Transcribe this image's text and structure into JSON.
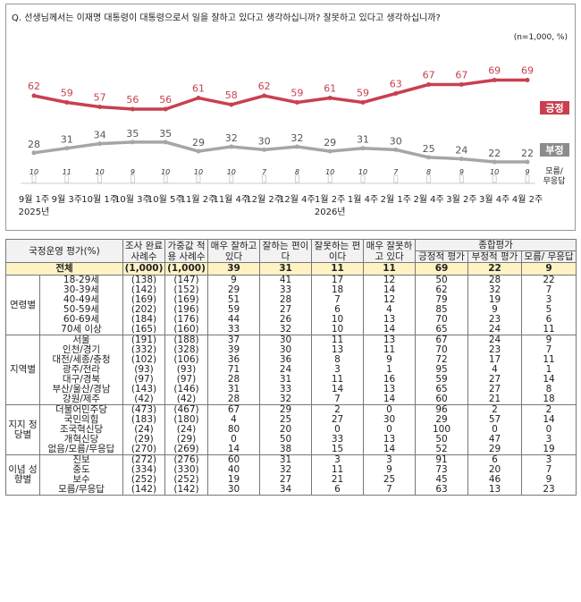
{
  "question": "Q. 선생님께서는 이재명 대통령이 대통령으로서 일을 잘하고 있다고 생각하십니까? 잘못하고 있다고 생각하십니까?",
  "note": "(n=1,000, %)",
  "colors": {
    "positive": "#c8404f",
    "negative": "#a6a6a6",
    "unknown": "#c8c8c8"
  },
  "chart_data": {
    "type": "line",
    "categories": [
      "9월 1주",
      "9월 3주",
      "10월 1주",
      "10월 3주",
      "10월 5주",
      "11월 2주",
      "11월 4주",
      "12월 2주",
      "12월 4주",
      "1월 2주",
      "1월 4주",
      "2월 1주",
      "2월 4주",
      "3월 2주",
      "3월 4주",
      "4월 2주"
    ],
    "year_labels": [
      {
        "index": 0,
        "text": "2025년"
      },
      {
        "index": 9,
        "text": "2026년"
      }
    ],
    "series": [
      {
        "name": "긍정",
        "values": [
          62,
          59,
          57,
          56,
          56,
          61,
          58,
          62,
          59,
          61,
          59,
          63,
          67,
          67,
          69,
          69
        ]
      },
      {
        "name": "부정",
        "values": [
          28,
          31,
          34,
          35,
          35,
          29,
          32,
          30,
          32,
          29,
          31,
          30,
          25,
          24,
          22,
          22
        ]
      },
      {
        "name": "모름/무응답",
        "values": [
          10,
          11,
          10,
          9,
          10,
          10,
          10,
          7,
          8,
          10,
          10,
          7,
          8,
          9,
          10,
          9
        ]
      }
    ]
  },
  "table": {
    "headers": {
      "evaluation": "국정운영 평가(%)",
      "sample": "조사 완료 사례수",
      "weighted": "가중값 적용 사례수",
      "very_good": "매우 잘하고 있다",
      "good": "잘하는 편이다",
      "bad": "잘못하는 편이다",
      "very_bad": "매우 잘못하고 있다",
      "overall": "종합평가",
      "positive": "긍정적 평가",
      "negative": "부정적 평가",
      "unknown": "모름/ 무응답"
    },
    "total": {
      "label": "전체",
      "cells": [
        "(1,000)",
        "(1,000)",
        "39",
        "31",
        "11",
        "11",
        "69",
        "22",
        "9"
      ]
    },
    "groups": [
      {
        "name": "연령별",
        "rows": [
          {
            "label": "18-29세",
            "cells": [
              "(138)",
              "(147)",
              "9",
              "41",
              "17",
              "12",
              "50",
              "28",
              "22"
            ]
          },
          {
            "label": "30-39세",
            "cells": [
              "(142)",
              "(152)",
              "29",
              "33",
              "18",
              "14",
              "62",
              "32",
              "7"
            ]
          },
          {
            "label": "40-49세",
            "cells": [
              "(169)",
              "(169)",
              "51",
              "28",
              "7",
              "12",
              "79",
              "19",
              "3"
            ]
          },
          {
            "label": "50-59세",
            "cells": [
              "(202)",
              "(196)",
              "59",
              "27",
              "6",
              "4",
              "85",
              "9",
              "5"
            ]
          },
          {
            "label": "60-69세",
            "cells": [
              "(184)",
              "(176)",
              "44",
              "26",
              "10",
              "13",
              "70",
              "23",
              "6"
            ]
          },
          {
            "label": "70세 이상",
            "cells": [
              "(165)",
              "(160)",
              "33",
              "32",
              "10",
              "14",
              "65",
              "24",
              "11"
            ]
          }
        ]
      },
      {
        "name": "지역별",
        "rows": [
          {
            "label": "서울",
            "cells": [
              "(191)",
              "(188)",
              "37",
              "30",
              "11",
              "13",
              "67",
              "24",
              "9"
            ]
          },
          {
            "label": "인천/경기",
            "cells": [
              "(332)",
              "(328)",
              "39",
              "30",
              "13",
              "11",
              "70",
              "23",
              "7"
            ]
          },
          {
            "label": "대전/세종/충청",
            "cells": [
              "(102)",
              "(106)",
              "36",
              "36",
              "8",
              "9",
              "72",
              "17",
              "11"
            ]
          },
          {
            "label": "광주/전라",
            "cells": [
              "(93)",
              "(93)",
              "71",
              "24",
              "3",
              "1",
              "95",
              "4",
              "1"
            ]
          },
          {
            "label": "대구/경북",
            "cells": [
              "(97)",
              "(97)",
              "28",
              "31",
              "11",
              "16",
              "59",
              "27",
              "14"
            ]
          },
          {
            "label": "부산/울산/경남",
            "cells": [
              "(143)",
              "(146)",
              "31",
              "33",
              "14",
              "13",
              "65",
              "27",
              "8"
            ]
          },
          {
            "label": "강원/제주",
            "cells": [
              "(42)",
              "(42)",
              "28",
              "32",
              "7",
              "14",
              "60",
              "21",
              "18"
            ]
          }
        ]
      },
      {
        "name": "지지 정당별",
        "rows": [
          {
            "label": "더불어민주당",
            "cells": [
              "(473)",
              "(467)",
              "67",
              "29",
              "2",
              "0",
              "96",
              "2",
              "2"
            ]
          },
          {
            "label": "국민의힘",
            "cells": [
              "(183)",
              "(180)",
              "4",
              "25",
              "27",
              "30",
              "29",
              "57",
              "14"
            ]
          },
          {
            "label": "조국혁신당",
            "cells": [
              "(24)",
              "(24)",
              "80",
              "20",
              "0",
              "0",
              "100",
              "0",
              "0"
            ]
          },
          {
            "label": "개혁신당",
            "cells": [
              "(29)",
              "(29)",
              "0",
              "50",
              "33",
              "13",
              "50",
              "47",
              "3"
            ]
          },
          {
            "label": "없음/모름/무응답",
            "cells": [
              "(270)",
              "(269)",
              "14",
              "38",
              "15",
              "14",
              "52",
              "29",
              "19"
            ]
          }
        ]
      },
      {
        "name": "이념 성향별",
        "rows": [
          {
            "label": "진보",
            "cells": [
              "(272)",
              "(276)",
              "60",
              "31",
              "3",
              "3",
              "91",
              "6",
              "3"
            ]
          },
          {
            "label": "중도",
            "cells": [
              "(334)",
              "(330)",
              "40",
              "32",
              "11",
              "9",
              "73",
              "20",
              "7"
            ]
          },
          {
            "label": "보수",
            "cells": [
              "(252)",
              "(252)",
              "19",
              "27",
              "21",
              "25",
              "45",
              "46",
              "9"
            ]
          },
          {
            "label": "모름/무응답",
            "cells": [
              "(142)",
              "(142)",
              "30",
              "34",
              "6",
              "7",
              "63",
              "13",
              "23"
            ]
          }
        ]
      }
    ]
  }
}
